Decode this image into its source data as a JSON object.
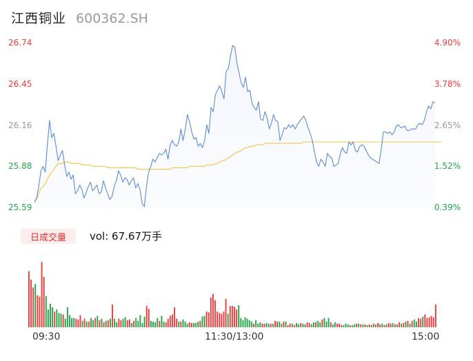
{
  "header": {
    "name": "江西铜业",
    "code": "600362.SH"
  },
  "volume_legend": {
    "label": "日成交量",
    "value_text": "vol: 67.67万手"
  },
  "colors": {
    "price": "#5b8bd6",
    "avg": "#f5c342",
    "up": "#ee3b3b",
    "down": "#22a64a",
    "neutral": "#999999"
  },
  "chart_data": [
    {
      "type": "line",
      "y_ticks_price": [
        "26.74",
        "26.45",
        "26.16",
        "25.88",
        "25.59"
      ],
      "y_ticks_pct": [
        "4.90%",
        "3.78%",
        "2.65%",
        "1.52%",
        "0.39%"
      ],
      "x_ticks": [
        "09:30",
        "11:30/13:00",
        "15:00"
      ],
      "ylim": [
        25.59,
        26.74
      ],
      "series": [
        {
          "values": [
            25.63,
            25.66,
            25.74,
            25.85,
            25.88,
            25.84,
            26.03,
            26.2,
            26.08,
            26.11,
            26.02,
            25.92,
            25.96,
            25.99,
            25.89,
            25.81,
            25.84,
            25.79,
            25.82,
            25.69,
            25.71,
            25.75,
            25.72,
            25.66,
            25.7,
            25.74,
            25.77,
            25.71,
            25.73,
            25.75,
            25.69,
            25.7,
            25.78,
            25.73,
            25.69,
            25.65,
            25.67,
            25.74,
            25.78,
            25.85,
            25.82,
            25.77,
            25.8,
            25.79,
            25.75,
            25.78,
            25.8,
            25.73,
            25.76,
            25.72,
            25.62,
            25.6,
            25.74,
            25.84,
            25.88,
            25.93,
            25.91,
            25.94,
            25.97,
            25.96,
            25.97,
            26.0,
            25.93,
            26.03,
            26.06,
            26.03,
            26.02,
            26.05,
            26.14,
            26.06,
            26.14,
            26.24,
            26.19,
            26.12,
            26.07,
            26.08,
            26.02,
            26.04,
            26.01,
            26.06,
            26.17,
            26.11,
            26.29,
            26.26,
            26.38,
            26.41,
            26.44,
            26.4,
            26.35,
            26.54,
            26.56,
            26.65,
            26.72,
            26.71,
            26.6,
            26.53,
            26.46,
            26.43,
            26.5,
            26.4,
            26.41,
            26.32,
            26.29,
            26.27,
            26.33,
            26.21,
            26.2,
            26.26,
            26.22,
            26.14,
            26.18,
            26.24,
            26.2,
            26.19,
            26.06,
            26.1,
            26.15,
            26.14,
            26.17,
            26.15,
            26.17,
            26.14,
            26.17,
            26.19,
            26.21,
            26.23,
            26.2,
            26.15,
            26.11,
            26.06,
            25.98,
            25.91,
            25.88,
            25.93,
            25.91,
            25.88,
            25.97,
            25.95,
            25.94,
            25.88,
            25.89,
            25.9,
            25.97,
            26.01,
            25.98,
            25.97,
            26.05,
            26.03,
            26.05,
            25.99,
            25.98,
            26.02,
            26.03,
            26.02,
            25.99,
            25.96,
            25.94,
            25.93,
            25.92,
            25.91,
            25.9,
            26.0,
            26.12,
            26.12,
            26.11,
            26.12,
            26.1,
            26.12,
            26.16,
            26.17,
            26.15,
            26.15,
            26.16,
            26.13,
            26.13,
            26.14,
            26.14,
            26.14,
            26.17,
            26.18,
            26.17,
            26.2,
            26.26,
            26.3,
            26.28,
            26.33,
            26.32
          ]
        },
        {
          "values": [
            25.64,
            25.65,
            25.69,
            25.73,
            25.74,
            25.76,
            25.79,
            25.82,
            25.84,
            25.86,
            25.88,
            25.9,
            25.9,
            25.9,
            25.91,
            25.91,
            25.91,
            25.9,
            25.9,
            25.9,
            25.9,
            25.9,
            25.89,
            25.89,
            25.89,
            25.89,
            25.89,
            25.88,
            25.88,
            25.88,
            25.88,
            25.88,
            25.88,
            25.88,
            25.87,
            25.87,
            25.87,
            25.87,
            25.87,
            25.87,
            25.87,
            25.87,
            25.87,
            25.87,
            25.87,
            25.87,
            25.87,
            25.87,
            25.86,
            25.86,
            25.86,
            25.86,
            25.86,
            25.86,
            25.86,
            25.86,
            25.86,
            25.86,
            25.86,
            25.86,
            25.86,
            25.86,
            25.86,
            25.86,
            25.87,
            25.87,
            25.87,
            25.87,
            25.87,
            25.87,
            25.87,
            25.87,
            25.88,
            25.88,
            25.88,
            25.88,
            25.88,
            25.88,
            25.88,
            25.88,
            25.89,
            25.89,
            25.89,
            25.89,
            25.9,
            25.9,
            25.91,
            25.92,
            25.92,
            25.93,
            25.94,
            25.95,
            25.96,
            25.97,
            25.98,
            25.98,
            25.99,
            26.0,
            26.01,
            26.01,
            26.02,
            26.02,
            26.02,
            26.03,
            26.03,
            26.03,
            26.03,
            26.04,
            26.04,
            26.04,
            26.04,
            26.04,
            26.04,
            26.04,
            26.04,
            26.04,
            26.04,
            26.04,
            26.04,
            26.04,
            26.04,
            26.04,
            26.04,
            26.04,
            26.04,
            26.05,
            26.05,
            26.05,
            26.05,
            26.05,
            26.05,
            26.05,
            26.05,
            26.05,
            26.05,
            26.05,
            26.05,
            26.05,
            26.05,
            26.05,
            26.05,
            26.05,
            26.05,
            26.05,
            26.05,
            26.05,
            26.05,
            26.05,
            26.05,
            26.05,
            26.05,
            26.05,
            26.05,
            26.05,
            26.05,
            26.05,
            26.05,
            26.05,
            26.05,
            26.05,
            26.05,
            26.05,
            26.05,
            26.05,
            26.05,
            26.05,
            26.05,
            26.05,
            26.05,
            26.05,
            26.05,
            26.05,
            26.05,
            26.05,
            26.05,
            26.05,
            26.05,
            26.05,
            26.05,
            26.05,
            26.05,
            26.05,
            26.05,
            26.05,
            26.05,
            26.05,
            26.05,
            26.05,
            26.05,
            26.05
          ]
        }
      ]
    },
    {
      "type": "bar",
      "volumes": [
        [
          0.79,
          "u"
        ],
        [
          0.67,
          "u"
        ],
        [
          0.56,
          "u"
        ],
        [
          0.61,
          "d"
        ],
        [
          0.45,
          "u"
        ],
        [
          0.43,
          "u"
        ],
        [
          0.92,
          "u"
        ],
        [
          0.71,
          "u"
        ],
        [
          0.44,
          "d"
        ],
        [
          0.25,
          "d"
        ],
        [
          0.33,
          "d"
        ],
        [
          0.28,
          "d"
        ],
        [
          0.22,
          "u"
        ],
        [
          0.25,
          "d"
        ],
        [
          0.2,
          "d"
        ],
        [
          0.19,
          "d"
        ],
        [
          0.18,
          "u"
        ],
        [
          0.12,
          "d"
        ],
        [
          0.28,
          "d"
        ],
        [
          0.17,
          "d"
        ],
        [
          0.13,
          "d"
        ],
        [
          0.13,
          "d"
        ],
        [
          0.12,
          "u"
        ],
        [
          0.11,
          "u"
        ],
        [
          0.17,
          "u"
        ],
        [
          0.09,
          "d"
        ],
        [
          0.12,
          "u"
        ],
        [
          0.08,
          "d"
        ],
        [
          0.08,
          "u"
        ],
        [
          0.13,
          "d"
        ],
        [
          0.1,
          "d"
        ],
        [
          0.13,
          "u"
        ],
        [
          0.16,
          "d"
        ],
        [
          0.1,
          "u"
        ],
        [
          0.12,
          "d"
        ],
        [
          0.07,
          "u"
        ],
        [
          0.09,
          "d"
        ],
        [
          0.1,
          "u"
        ],
        [
          0.12,
          "d"
        ],
        [
          0.32,
          "u"
        ],
        [
          0.12,
          "d"
        ],
        [
          0.07,
          "d"
        ],
        [
          0.12,
          "u"
        ],
        [
          0.1,
          "u"
        ],
        [
          0.12,
          "d"
        ],
        [
          0.14,
          "d"
        ],
        [
          0.1,
          "u"
        ],
        [
          0.11,
          "u"
        ],
        [
          0.06,
          "d"
        ],
        [
          0.09,
          "u"
        ],
        [
          0.13,
          "d"
        ],
        [
          0.09,
          "d"
        ],
        [
          0.17,
          "d"
        ],
        [
          0.06,
          "d"
        ],
        [
          0.15,
          "d"
        ],
        [
          0.3,
          "u"
        ],
        [
          0.26,
          "u"
        ],
        [
          0.09,
          "d"
        ],
        [
          0.08,
          "d"
        ],
        [
          0.07,
          "d"
        ],
        [
          0.13,
          "d"
        ],
        [
          0.09,
          "u"
        ],
        [
          0.16,
          "d"
        ],
        [
          0.08,
          "d"
        ],
        [
          0.07,
          "u"
        ],
        [
          0.12,
          "u"
        ],
        [
          0.16,
          "u"
        ],
        [
          0.18,
          "u"
        ],
        [
          0.28,
          "u"
        ],
        [
          0.12,
          "u"
        ],
        [
          0.08,
          "d"
        ],
        [
          0.08,
          "u"
        ],
        [
          0.11,
          "d"
        ],
        [
          0.08,
          "d"
        ],
        [
          0.05,
          "d"
        ],
        [
          0.07,
          "u"
        ],
        [
          0.06,
          "u"
        ],
        [
          0.06,
          "d"
        ],
        [
          0.06,
          "d"
        ],
        [
          0.08,
          "d"
        ],
        [
          0.09,
          "u"
        ],
        [
          0.15,
          "d"
        ],
        [
          0.16,
          "d"
        ],
        [
          0.22,
          "u"
        ],
        [
          0.21,
          "u"
        ],
        [
          0.42,
          "u"
        ],
        [
          0.47,
          "u"
        ],
        [
          0.38,
          "u"
        ],
        [
          0.22,
          "u"
        ],
        [
          0.2,
          "u"
        ],
        [
          0.19,
          "u"
        ],
        [
          0.22,
          "u"
        ],
        [
          0.4,
          "u"
        ],
        [
          0.19,
          "d"
        ],
        [
          0.3,
          "u"
        ],
        [
          0.3,
          "u"
        ],
        [
          0.29,
          "u"
        ],
        [
          0.25,
          "u"
        ],
        [
          0.31,
          "d"
        ],
        [
          0.13,
          "d"
        ],
        [
          0.1,
          "d"
        ],
        [
          0.14,
          "d"
        ],
        [
          0.12,
          "d"
        ],
        [
          0.1,
          "d"
        ],
        [
          0.08,
          "d"
        ],
        [
          0.05,
          "u"
        ],
        [
          0.1,
          "d"
        ],
        [
          0.05,
          "d"
        ],
        [
          0.07,
          "d"
        ],
        [
          0.05,
          "u"
        ],
        [
          0.05,
          "u"
        ],
        [
          0.06,
          "d"
        ],
        [
          0.05,
          "d"
        ],
        [
          0.05,
          "u"
        ],
        [
          0.05,
          "d"
        ],
        [
          0.09,
          "u"
        ],
        [
          0.08,
          "u"
        ],
        [
          0.08,
          "d"
        ],
        [
          0.05,
          "d"
        ],
        [
          0.08,
          "u"
        ],
        [
          0.08,
          "d"
        ],
        [
          0.03,
          "u"
        ],
        [
          0.05,
          "u"
        ],
        [
          0.05,
          "d"
        ],
        [
          0.03,
          "u"
        ],
        [
          0.06,
          "d"
        ],
        [
          0.04,
          "d"
        ],
        [
          0.06,
          "u"
        ],
        [
          0.05,
          "d"
        ],
        [
          0.04,
          "d"
        ],
        [
          0.07,
          "u"
        ],
        [
          0.06,
          "u"
        ],
        [
          0.04,
          "d"
        ],
        [
          0.07,
          "d"
        ],
        [
          0.07,
          "u"
        ],
        [
          0.09,
          "d"
        ],
        [
          0.07,
          "d"
        ],
        [
          0.11,
          "u"
        ],
        [
          0.13,
          "d"
        ],
        [
          0.08,
          "d"
        ],
        [
          0.13,
          "d"
        ],
        [
          0.07,
          "u"
        ],
        [
          0.04,
          "d"
        ],
        [
          0.07,
          "d"
        ],
        [
          0.05,
          "u"
        ],
        [
          0.05,
          "u"
        ],
        [
          0.03,
          "u"
        ],
        [
          0.03,
          "d"
        ],
        [
          0.05,
          "d"
        ],
        [
          0.04,
          "d"
        ],
        [
          0.03,
          "u"
        ],
        [
          0.03,
          "d"
        ],
        [
          0.04,
          "d"
        ],
        [
          0.05,
          "u"
        ],
        [
          0.05,
          "d"
        ],
        [
          0.04,
          "u"
        ],
        [
          0.04,
          "d"
        ],
        [
          0.04,
          "u"
        ],
        [
          0.03,
          "d"
        ],
        [
          0.04,
          "u"
        ],
        [
          0.03,
          "d"
        ],
        [
          0.05,
          "u"
        ],
        [
          0.04,
          "d"
        ],
        [
          0.06,
          "u"
        ],
        [
          0.04,
          "u"
        ],
        [
          0.05,
          "d"
        ],
        [
          0.03,
          "u"
        ],
        [
          0.04,
          "d"
        ],
        [
          0.06,
          "u"
        ],
        [
          0.05,
          "u"
        ],
        [
          0.06,
          "d"
        ],
        [
          0.04,
          "u"
        ],
        [
          0.04,
          "d"
        ],
        [
          0.07,
          "u"
        ],
        [
          0.05,
          "d"
        ],
        [
          0.06,
          "u"
        ],
        [
          0.08,
          "d"
        ],
        [
          0.09,
          "u"
        ],
        [
          0.05,
          "d"
        ],
        [
          0.09,
          "u"
        ],
        [
          0.11,
          "d"
        ],
        [
          0.08,
          "d"
        ],
        [
          0.13,
          "u"
        ],
        [
          0.12,
          "u"
        ],
        [
          0.15,
          "d"
        ],
        [
          0.18,
          "u"
        ],
        [
          0.13,
          "u"
        ],
        [
          0.14,
          "u"
        ],
        [
          0.16,
          "u"
        ],
        [
          0.14,
          "u"
        ],
        [
          0.32,
          "u"
        ]
      ]
    }
  ]
}
